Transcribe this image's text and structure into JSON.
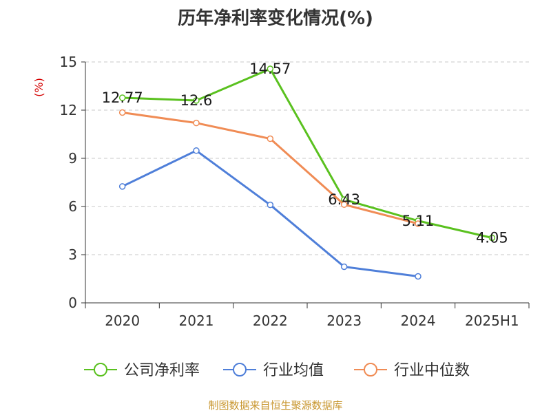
{
  "chart_data": {
    "type": "line",
    "title": "历年净利率变化情况(%)",
    "ylabel": "(%)",
    "xlabel": "",
    "categories": [
      "2020",
      "2021",
      "2022",
      "2023",
      "2024",
      "2025H1"
    ],
    "ylim": [
      0,
      15
    ],
    "yticks": [
      0,
      3,
      6,
      9,
      12,
      15
    ],
    "grid": true,
    "legend_position": "bottom",
    "series": [
      {
        "name": "公司净利率",
        "color": "#5ac11f",
        "values": [
          12.77,
          12.6,
          14.57,
          6.43,
          5.11,
          4.05
        ],
        "labels": [
          "12.77",
          "12.6",
          "14.57",
          "6.43",
          "5.11",
          "4.05"
        ]
      },
      {
        "name": "行业均值",
        "color": "#4f7fd9",
        "values": [
          7.25,
          9.48,
          6.1,
          2.25,
          1.65,
          null
        ]
      },
      {
        "name": "行业中位数",
        "color": "#f08c55",
        "values": [
          11.85,
          11.2,
          10.22,
          6.12,
          4.93,
          null
        ]
      }
    ]
  },
  "source": "制图数据来自恒生聚源数据库"
}
